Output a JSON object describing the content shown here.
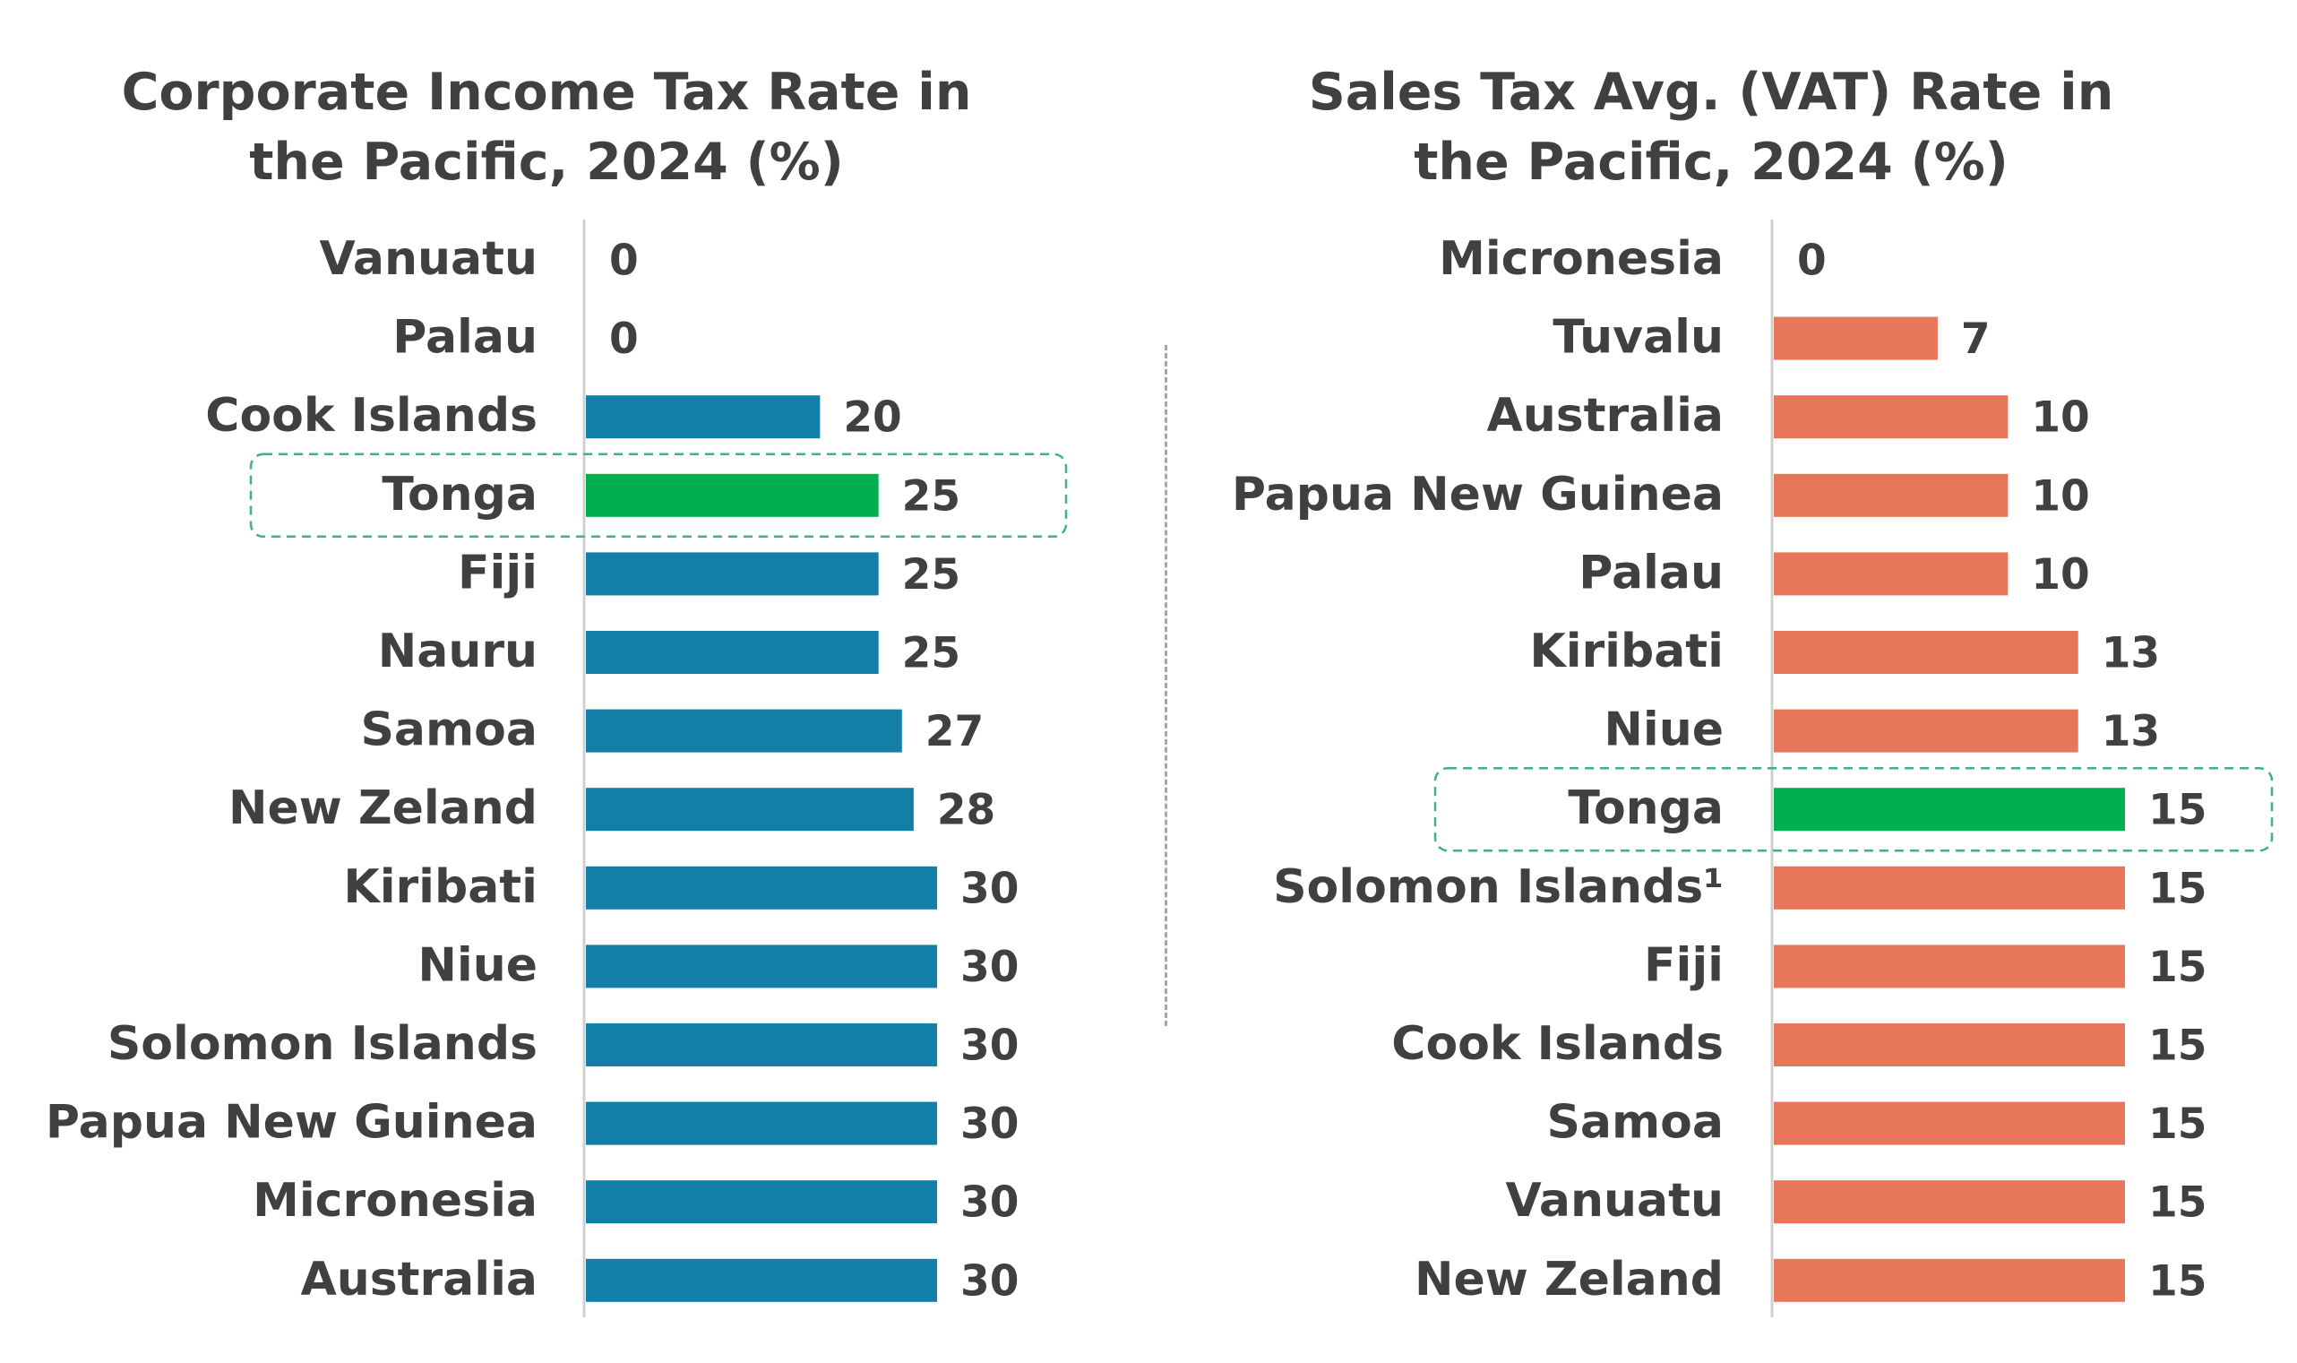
{
  "colors": {
    "left_bar": "#137ea7",
    "right_bar": "#e8765a",
    "highlight_bar": "#00b050",
    "highlight_box": "#3fb37f",
    "axis": "#d0d0d0",
    "text": "#404040"
  },
  "chart_data": [
    {
      "type": "bar",
      "orientation": "horizontal",
      "title_lines": [
        "Corporate Income Tax Rate in",
        "the Pacific, 2024 (%)"
      ],
      "categories": [
        "Vanuatu",
        "Palau",
        "Cook Islands",
        "Tonga",
        "Fiji",
        "Nauru",
        "Samoa",
        "New Zeland",
        "Kiribati",
        "Niue",
        "Solomon Islands",
        "Papua New Guinea",
        "Micronesia",
        "Australia"
      ],
      "values": [
        0,
        0,
        20,
        25,
        25,
        25,
        27,
        28,
        30,
        30,
        30,
        30,
        30,
        30
      ],
      "highlight": "Tonga",
      "xlim": [
        0,
        30
      ],
      "grid": false,
      "data_labels": true
    },
    {
      "type": "bar",
      "orientation": "horizontal",
      "title_lines": [
        "Sales Tax Avg. (VAT) Rate in",
        "the Pacific, 2024 (%)"
      ],
      "categories": [
        "Micronesia",
        "Tuvalu",
        "Australia",
        "Papua New Guinea",
        "Palau",
        "Kiribati",
        "Niue",
        "Tonga",
        "Solomon Islands¹",
        "Fiji",
        "Cook Islands",
        "Samoa",
        "Vanuatu",
        "New Zeland"
      ],
      "values": [
        0,
        7,
        10,
        10,
        10,
        13,
        13,
        15,
        15,
        15,
        15,
        15,
        15,
        15
      ],
      "highlight": "Tonga",
      "xlim": [
        0,
        15
      ],
      "grid": false,
      "data_labels": true
    }
  ]
}
